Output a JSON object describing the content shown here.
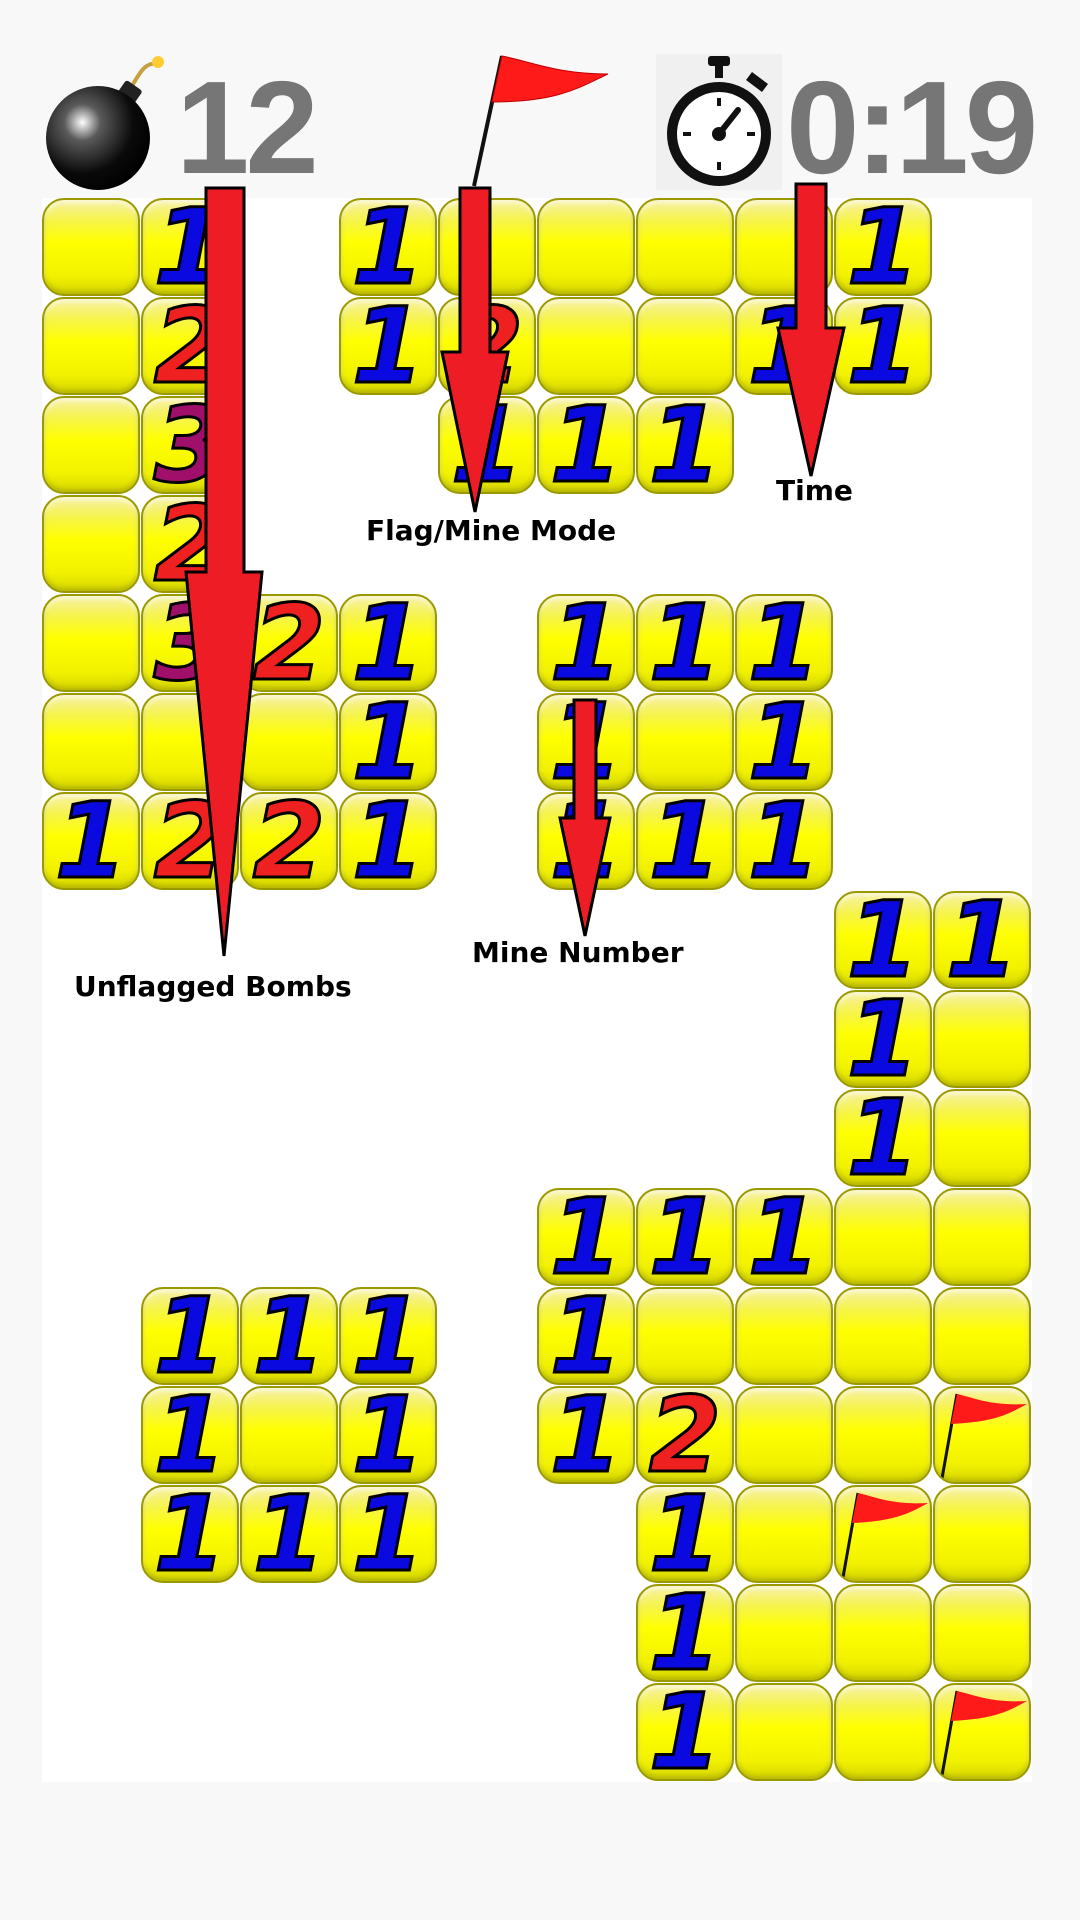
{
  "header": {
    "bomb_icon": "bomb-icon",
    "mines_remaining": "12",
    "mode_icon": "red-flag-icon",
    "timer_icon": "stopwatch-icon",
    "time": "0:19"
  },
  "colors": {
    "tile_yellow": "#ffff00",
    "number_1": "#0a0ae0",
    "number_2": "#ee2020",
    "number_3": "#a0106a",
    "flag_red": "#ff1a1a",
    "arrow_red": "#ee1c24",
    "header_text": "#767676"
  },
  "board": {
    "cols": 10,
    "rows": 16,
    "revealed": [
      [
        0,
        0,
        ""
      ],
      [
        1,
        0,
        "1"
      ],
      [
        3,
        0,
        "1"
      ],
      [
        4,
        0,
        ""
      ],
      [
        5,
        0,
        ""
      ],
      [
        6,
        0,
        ""
      ],
      [
        7,
        0,
        ""
      ],
      [
        8,
        0,
        "1"
      ],
      [
        0,
        1,
        ""
      ],
      [
        1,
        1,
        "2"
      ],
      [
        3,
        1,
        "1"
      ],
      [
        4,
        1,
        "2"
      ],
      [
        5,
        1,
        ""
      ],
      [
        6,
        1,
        ""
      ],
      [
        7,
        1,
        "1"
      ],
      [
        8,
        1,
        "1"
      ],
      [
        0,
        2,
        ""
      ],
      [
        1,
        2,
        "3"
      ],
      [
        4,
        2,
        "1"
      ],
      [
        5,
        2,
        "1"
      ],
      [
        6,
        2,
        "1"
      ],
      [
        0,
        3,
        ""
      ],
      [
        1,
        3,
        "2"
      ],
      [
        0,
        4,
        ""
      ],
      [
        1,
        4,
        "3"
      ],
      [
        2,
        4,
        "2"
      ],
      [
        3,
        4,
        "1"
      ],
      [
        5,
        4,
        "1"
      ],
      [
        6,
        4,
        "1"
      ],
      [
        7,
        4,
        "1"
      ],
      [
        0,
        5,
        ""
      ],
      [
        1,
        5,
        ""
      ],
      [
        2,
        5,
        ""
      ],
      [
        3,
        5,
        "1"
      ],
      [
        5,
        5,
        "1"
      ],
      [
        6,
        5,
        ""
      ],
      [
        7,
        5,
        "1"
      ],
      [
        0,
        6,
        "1"
      ],
      [
        1,
        6,
        "2"
      ],
      [
        2,
        6,
        "2"
      ],
      [
        3,
        6,
        "1"
      ],
      [
        5,
        6,
        "1"
      ],
      [
        6,
        6,
        "1"
      ],
      [
        7,
        6,
        "1"
      ],
      [
        8,
        7,
        "1"
      ],
      [
        9,
        7,
        "1"
      ],
      [
        8,
        8,
        "1"
      ],
      [
        9,
        8,
        ""
      ],
      [
        8,
        9,
        "1"
      ],
      [
        9,
        9,
        ""
      ],
      [
        5,
        10,
        "1"
      ],
      [
        6,
        10,
        "1"
      ],
      [
        7,
        10,
        "1"
      ],
      [
        8,
        10,
        ""
      ],
      [
        9,
        10,
        ""
      ],
      [
        1,
        11,
        "1"
      ],
      [
        2,
        11,
        "1"
      ],
      [
        3,
        11,
        "1"
      ],
      [
        5,
        11,
        "1"
      ],
      [
        6,
        11,
        ""
      ],
      [
        7,
        11,
        ""
      ],
      [
        8,
        11,
        ""
      ],
      [
        9,
        11,
        ""
      ],
      [
        1,
        12,
        "1"
      ],
      [
        2,
        12,
        ""
      ],
      [
        3,
        12,
        "1"
      ],
      [
        5,
        12,
        "1"
      ],
      [
        6,
        12,
        "2"
      ],
      [
        7,
        12,
        ""
      ],
      [
        8,
        12,
        ""
      ],
      [
        9,
        12,
        "F"
      ],
      [
        1,
        13,
        "1"
      ],
      [
        2,
        13,
        "1"
      ],
      [
        3,
        13,
        "1"
      ],
      [
        6,
        13,
        "1"
      ],
      [
        7,
        13,
        ""
      ],
      [
        8,
        13,
        "F"
      ],
      [
        9,
        13,
        ""
      ],
      [
        6,
        14,
        "1"
      ],
      [
        7,
        14,
        ""
      ],
      [
        8,
        14,
        ""
      ],
      [
        9,
        14,
        ""
      ],
      [
        6,
        15,
        "1"
      ],
      [
        7,
        15,
        ""
      ],
      [
        8,
        15,
        ""
      ],
      [
        9,
        15,
        "F"
      ]
    ]
  },
  "annotations": {
    "unflagged_bombs": "Unflagged Bombs",
    "flag_mine_mode": "Flag/Mine Mode",
    "time": "Time",
    "mine_number": "Mine Number"
  }
}
